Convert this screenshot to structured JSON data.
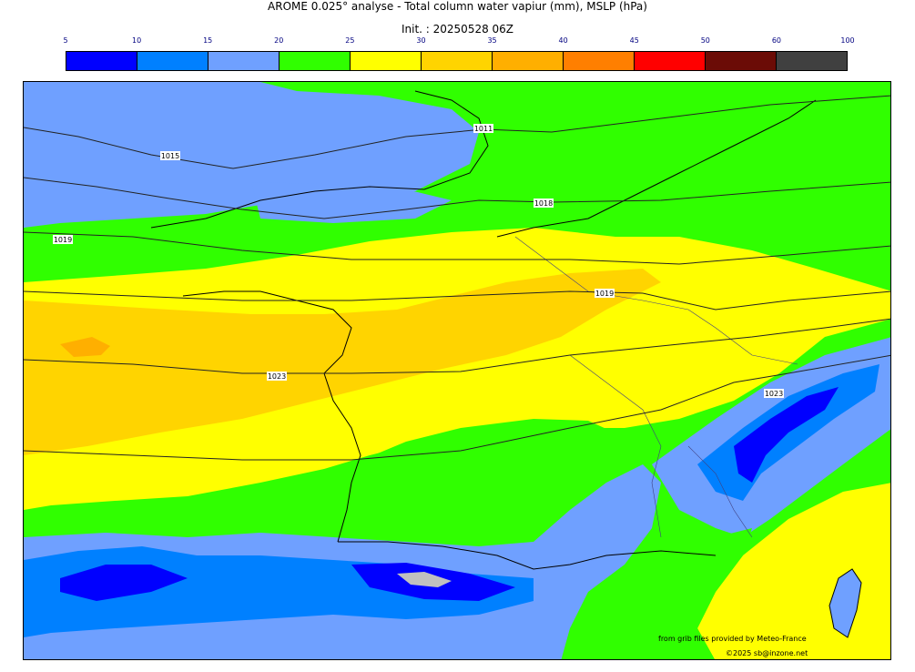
{
  "title": "AROME 0.025° analyse - Total column water vapiur (mm), MSLP (hPa)",
  "subtitle": "Init. : 20250528 06Z",
  "legend": {
    "ticks": [
      "5",
      "10",
      "15",
      "20",
      "25",
      "30",
      "35",
      "40",
      "45",
      "50",
      "60",
      "100"
    ],
    "colors": [
      "#0000ff",
      "#0080ff",
      "#6fa0ff",
      "#30ff00",
      "#ffff00",
      "#ffd400",
      "#ffaf00",
      "#ff7f00",
      "#ff0000",
      "#6b0c06",
      "#404040"
    ]
  },
  "isobars": [
    {
      "label": "1011"
    },
    {
      "label": "1015"
    },
    {
      "label": "1018"
    },
    {
      "label": "1019"
    },
    {
      "label": "1019b",
      "text": "1019"
    },
    {
      "label": "1023"
    },
    {
      "label": "1023b",
      "text": "1023"
    }
  ],
  "isobar_texts": [
    "1011",
    "1015",
    "1018",
    "1019",
    "1019",
    "1023",
    "1023"
  ],
  "credits": {
    "line1": "from grib files provided by Meteo-France",
    "line2": "©2025 sb@inzone.net"
  }
}
